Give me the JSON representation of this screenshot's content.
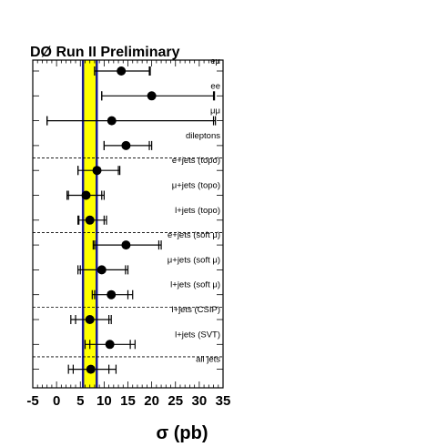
{
  "chart_data": {
    "type": "scatter",
    "title": "DØ Run II Preliminary",
    "xlabel": "σ (pb)",
    "ylabel": "",
    "xlim": [
      -5,
      35
    ],
    "xticks": [
      "-5",
      "0",
      "5",
      "10",
      "15",
      "20",
      "25",
      "30",
      "35"
    ],
    "reference_band": {
      "center": 7.0,
      "low": 5.8,
      "high": 8.2,
      "color": "#ffff00"
    },
    "point_color": "#000000",
    "frame_color": "#000000",
    "reference_line_color": "#1c1c8c",
    "measurements": [
      {
        "label": "eμ",
        "value": 13.6,
        "stat_low": 8.0,
        "stat_high": 19.5,
        "total_low": 8.0,
        "total_high": 19.7
      },
      {
        "label": "ee",
        "value": 20.0,
        "stat_low": 9.5,
        "stat_high": 33.0,
        "total_low": 9.5,
        "total_high": 33.2
      },
      {
        "label": "μμ",
        "value": 11.6,
        "stat_low": -2.0,
        "stat_high": 33.0,
        "total_low": -2.0,
        "total_high": 33.4
      },
      {
        "label": "dileptons",
        "value": 14.6,
        "stat_low": 10.0,
        "stat_high": 19.5,
        "total_low": 10.0,
        "total_high": 20.0
      },
      {
        "label": "e+jets (topo)",
        "value": 8.5,
        "stat_low": 4.5,
        "stat_high": 13.0,
        "total_low": 4.5,
        "total_high": 13.3
      },
      {
        "label": "μ+jets (topo)",
        "value": 6.2,
        "stat_low": 2.5,
        "stat_high": 9.5,
        "total_low": 2.2,
        "total_high": 10.0
      },
      {
        "label": "l+jets (topo)",
        "value": 7.0,
        "stat_low": 4.7,
        "stat_high": 10.0,
        "total_low": 4.5,
        "total_high": 10.5
      },
      {
        "label": "e+jets (soft μ)",
        "value": 14.6,
        "stat_low": 8.0,
        "stat_high": 21.5,
        "total_low": 7.7,
        "total_high": 22.0
      },
      {
        "label": "μ+jets (soft μ)",
        "value": 9.5,
        "stat_low": 5.0,
        "stat_high": 14.5,
        "total_low": 4.5,
        "total_high": 15.0
      },
      {
        "label": "l+jets (soft μ)",
        "value": 11.5,
        "stat_low": 8.0,
        "stat_high": 15.0,
        "total_low": 7.5,
        "total_high": 16.0
      },
      {
        "label": "l+jets (CSIP)",
        "value": 7.0,
        "stat_low": 4.0,
        "stat_high": 11.0,
        "total_low": 3.0,
        "total_high": 11.5
      },
      {
        "label": "l+jets (SVT)",
        "value": 11.2,
        "stat_low": 7.0,
        "stat_high": 15.5,
        "total_low": 6.0,
        "total_high": 16.5
      },
      {
        "label": "all jets",
        "value": 7.2,
        "stat_low": 3.5,
        "stat_high": 11.0,
        "total_low": 2.5,
        "total_high": 12.5
      }
    ],
    "separators_after": [
      3,
      6,
      9,
      11
    ],
    "grid": false,
    "legend": "none"
  }
}
